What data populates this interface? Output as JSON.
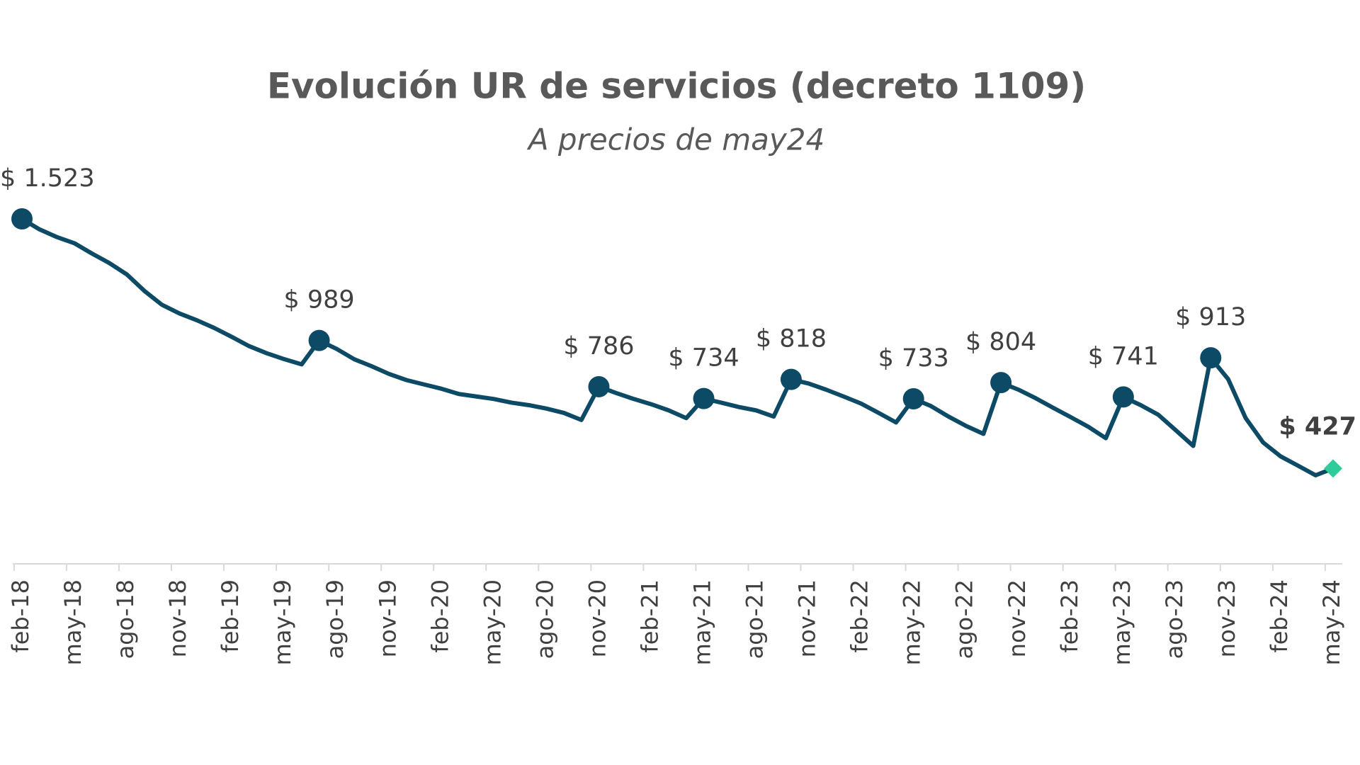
{
  "chart_data": {
    "type": "line",
    "title": "Evolución UR de servicios (decreto 1109)",
    "subtitle": "A precios de may24",
    "categories": [
      "feb-18",
      null,
      null,
      "may-18",
      null,
      null,
      "ago-18",
      null,
      null,
      "nov-18",
      null,
      null,
      "feb-19",
      null,
      null,
      "may-19",
      null,
      null,
      "ago-19",
      null,
      null,
      "nov-19",
      null,
      null,
      "feb-20",
      null,
      null,
      "may-20",
      null,
      null,
      "ago-20",
      null,
      null,
      "nov-20",
      null,
      null,
      "feb-21",
      null,
      null,
      "may-21",
      null,
      null,
      "ago-21",
      null,
      null,
      "nov-21",
      null,
      null,
      "feb-22",
      null,
      null,
      "may-22",
      null,
      null,
      "ago-22",
      null,
      null,
      "nov-22",
      null,
      null,
      "feb-23",
      null,
      null,
      "may-23",
      null,
      null,
      "ago-23",
      null,
      null,
      "nov-23",
      null,
      null,
      "feb-24",
      null,
      null,
      "may-24"
    ],
    "series": [
      {
        "color": "#0d4a66",
        "values": [
          1523,
          1477,
          1443,
          1416,
          1371,
          1329,
          1279,
          1207,
          1146,
          1108,
          1078,
          1044,
          1005,
          964,
          933,
          907,
          884,
          989,
          952,
          907,
          876,
          842,
          815,
          796,
          777,
          754,
          743,
          732,
          716,
          705,
          690,
          671,
          640,
          786,
          758,
          732,
          709,
          682,
          648,
          734,
          716,
          697,
          682,
          655,
          818,
          800,
          773,
          743,
          712,
          671,
          629,
          733,
          701,
          655,
          614,
          579,
          804,
          773,
          735,
          693,
          652,
          610,
          560,
          741,
          705,
          663,
          595,
          526,
          913,
          819,
          648,
          541,
          480,
          439,
          397,
          427
        ],
        "value_labels": [
          "$ 1.523",
          null,
          null,
          null,
          null,
          null,
          null,
          null,
          null,
          null,
          null,
          null,
          null,
          null,
          null,
          null,
          null,
          "$ 989",
          null,
          null,
          null,
          null,
          null,
          null,
          null,
          null,
          null,
          null,
          null,
          null,
          null,
          null,
          null,
          "$ 786",
          null,
          null,
          null,
          null,
          null,
          "$ 734",
          null,
          null,
          null,
          null,
          "$ 818",
          null,
          null,
          null,
          null,
          null,
          null,
          "$ 733",
          null,
          null,
          null,
          null,
          "$ 804",
          null,
          null,
          null,
          null,
          null,
          null,
          "$ 741",
          null,
          null,
          null,
          null,
          "$ 913",
          null,
          null,
          null,
          null,
          null,
          null,
          "$ 427"
        ],
        "last_point_color": "#2ecc9a"
      }
    ],
    "grid": false
  }
}
